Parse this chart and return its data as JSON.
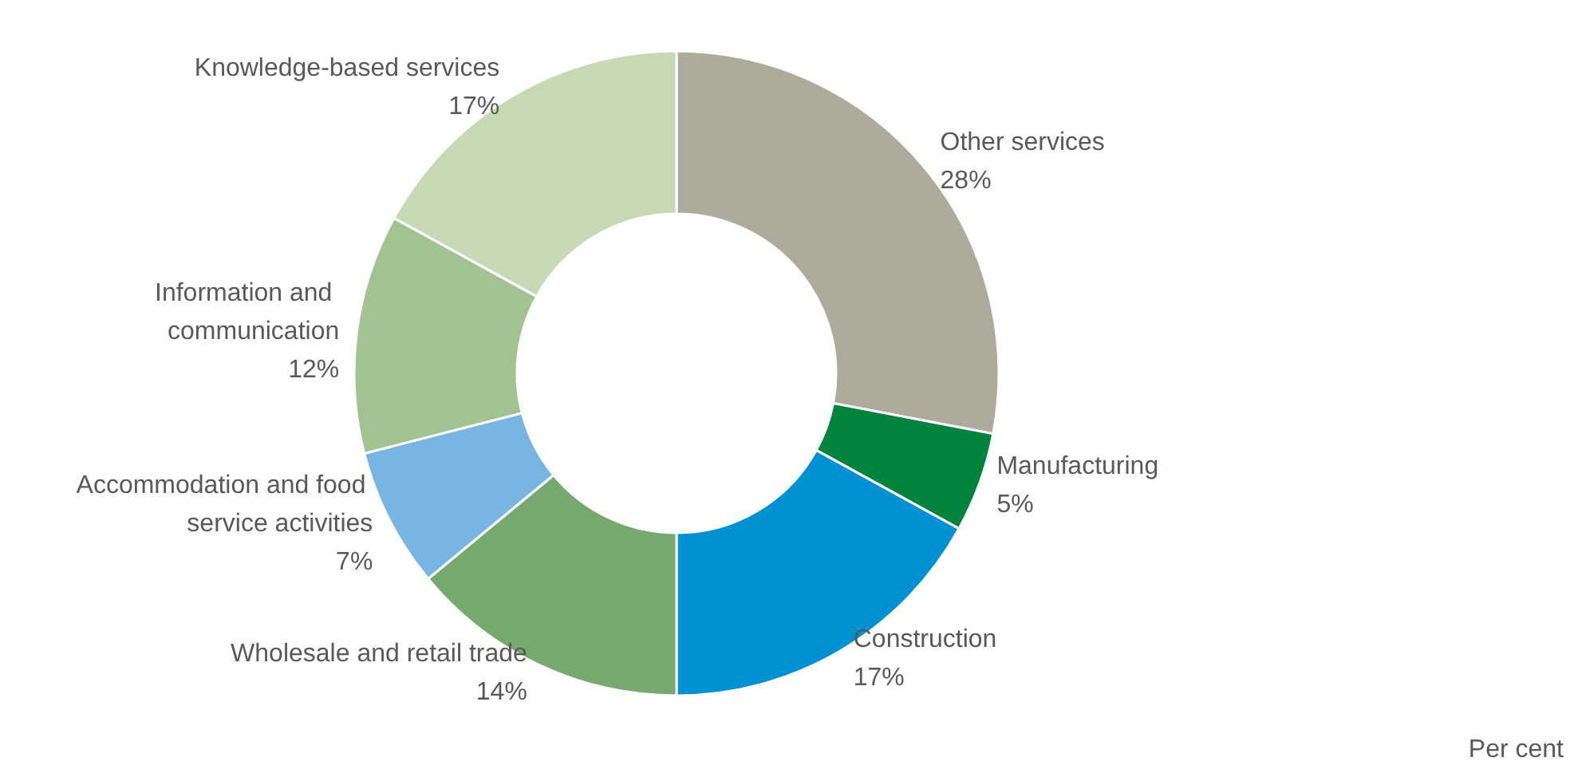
{
  "chart_data": {
    "type": "donut",
    "categories": [
      "Other services",
      "Manufacturing",
      "Construction",
      "Wholesale and retail trade",
      "Accommodation and food service activities",
      "Information and communication",
      "Knowledge-based services"
    ],
    "values": [
      28,
      5,
      17,
      14,
      7,
      12,
      17
    ],
    "value_labels": [
      "28%",
      "5%",
      "17%",
      "14%",
      "7%",
      "12%",
      "17%"
    ],
    "colors": [
      "#adac9c",
      "#00843d",
      "#0091d5",
      "#76a96e",
      "#77b5e3",
      "#a3c291",
      "#c6d9b5"
    ],
    "annotations": [
      "Per cent"
    ],
    "legend": false
  }
}
